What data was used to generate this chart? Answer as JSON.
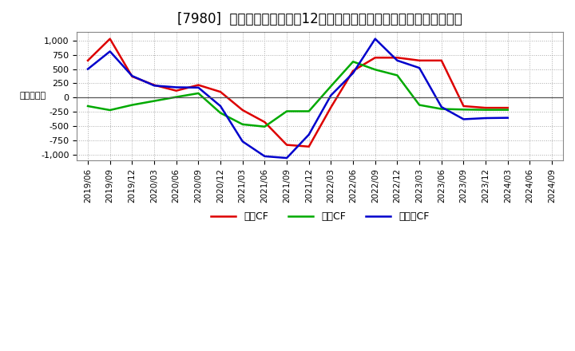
{
  "title": "[7980]  キャッシュフローの12か月移動合計の対前年同期増減額の推移",
  "ylabel": "（百万円）",
  "background_color": "#ffffff",
  "plot_background_color": "#ffffff",
  "grid_color": "#aaaaaa",
  "ylim": [
    -1100,
    1150
  ],
  "yticks": [
    -1000,
    -750,
    -500,
    -250,
    0,
    250,
    500,
    750,
    1000
  ],
  "x_labels": [
    "2019/06",
    "2019/09",
    "2019/12",
    "2020/03",
    "2020/06",
    "2020/09",
    "2020/12",
    "2021/03",
    "2021/06",
    "2021/09",
    "2021/12",
    "2022/03",
    "2022/06",
    "2022/09",
    "2022/12",
    "2023/03",
    "2023/06",
    "2023/09",
    "2023/12",
    "2024/03",
    "2024/06",
    "2024/09"
  ],
  "series": {
    "営業CF": {
      "color": "#dd0000",
      "values": [
        650,
        1030,
        370,
        220,
        120,
        220,
        100,
        -220,
        -430,
        -830,
        -860,
        -170,
        470,
        700,
        700,
        650,
        650,
        -150,
        -180,
        -180,
        null,
        null
      ]
    },
    "投資CF": {
      "color": "#00aa00",
      "values": [
        -150,
        -220,
        -130,
        -60,
        10,
        75,
        -270,
        -470,
        -510,
        -240,
        -240,
        200,
        630,
        490,
        390,
        -130,
        -200,
        -210,
        -215,
        -215,
        null,
        null
      ]
    },
    "フリーCF": {
      "color": "#0000cc",
      "values": [
        500,
        810,
        380,
        210,
        180,
        175,
        -150,
        -770,
        -1030,
        -1060,
        -650,
        40,
        430,
        1030,
        650,
        520,
        -165,
        -380,
        -360,
        -355,
        null,
        null
      ]
    }
  },
  "legend_entries": [
    "営業CF",
    "投資CF",
    "フリーCF"
  ],
  "title_fontsize": 12,
  "axis_fontsize": 8,
  "legend_fontsize": 9
}
